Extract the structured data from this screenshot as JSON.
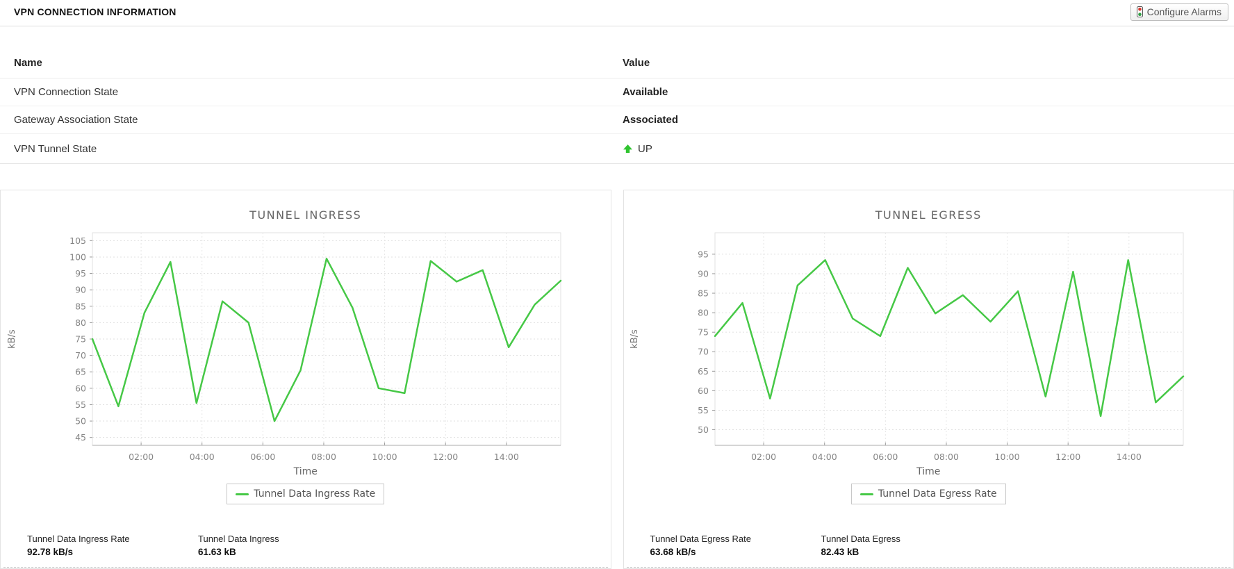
{
  "header": {
    "title": "VPN CONNECTION INFORMATION",
    "configure_alarms_label": "Configure Alarms"
  },
  "icons": {
    "configure_alarms": "traffic-light-icon",
    "tunnel_state": "up-arrow-icon"
  },
  "colors": {
    "line_green": "#46c846",
    "arrow_green": "#2fc42f",
    "status_red": "#d9342b",
    "status_green": "#2f9e44"
  },
  "table": {
    "name_header": "Name",
    "value_header": "Value",
    "rows": [
      {
        "name": "VPN Connection State",
        "value": "Available"
      },
      {
        "name": "Gateway Association State",
        "value": "Associated"
      },
      {
        "name": "VPN Tunnel State",
        "value": "UP"
      }
    ]
  },
  "chart_data": [
    {
      "id": "tunnel-ingress",
      "type": "line",
      "title": "TUNNEL INGRESS",
      "xlabel": "Time",
      "ylabel": "kB/s",
      "grid": true,
      "legend_position": "bottom",
      "x_tick_labels": [
        "02:00",
        "04:00",
        "06:00",
        "08:00",
        "10:00",
        "12:00",
        "14:00"
      ],
      "x_tick_start": 0.104,
      "x_tick_step": 0.13,
      "y_ticks": [
        45,
        50,
        55,
        60,
        65,
        70,
        75,
        80,
        85,
        90,
        95,
        100,
        105
      ],
      "ylim": [
        42.6,
        107.4
      ],
      "series": [
        {
          "name": "Tunnel Data Ingress Rate",
          "color": "#46c846",
          "values": [
            75,
            54.5,
            83,
            98.5,
            55.5,
            86.5,
            80,
            50,
            65.5,
            99.5,
            84.5,
            60,
            58.5,
            98.8,
            92.5,
            96,
            72.5,
            85.5,
            92.78
          ]
        }
      ]
    },
    {
      "id": "tunnel-egress",
      "type": "line",
      "title": "TUNNEL EGRESS",
      "xlabel": "Time",
      "ylabel": "kB/s",
      "grid": true,
      "legend_position": "bottom",
      "x_tick_labels": [
        "02:00",
        "04:00",
        "06:00",
        "08:00",
        "10:00",
        "12:00",
        "14:00"
      ],
      "x_tick_start": 0.104,
      "x_tick_step": 0.13,
      "y_ticks": [
        50,
        55,
        60,
        65,
        70,
        75,
        80,
        85,
        90,
        95
      ],
      "ylim": [
        46,
        100.5
      ],
      "series": [
        {
          "name": "Tunnel Data Egress Rate",
          "color": "#46c846",
          "values": [
            74,
            82.5,
            58,
            87,
            93.5,
            78.5,
            74,
            91.5,
            79.8,
            84.5,
            77.7,
            85.5,
            58.5,
            90.5,
            53.5,
            93.5,
            57,
            63.68
          ]
        }
      ]
    }
  ],
  "stats": {
    "ingress": [
      {
        "label": "Tunnel Data Ingress Rate",
        "value": "92.78 kB/s"
      },
      {
        "label": "Tunnel Data Ingress",
        "value": "61.63 kB"
      }
    ],
    "egress": [
      {
        "label": "Tunnel Data Egress Rate",
        "value": "63.68 kB/s"
      },
      {
        "label": "Tunnel Data Egress",
        "value": "82.43 kB"
      }
    ]
  }
}
